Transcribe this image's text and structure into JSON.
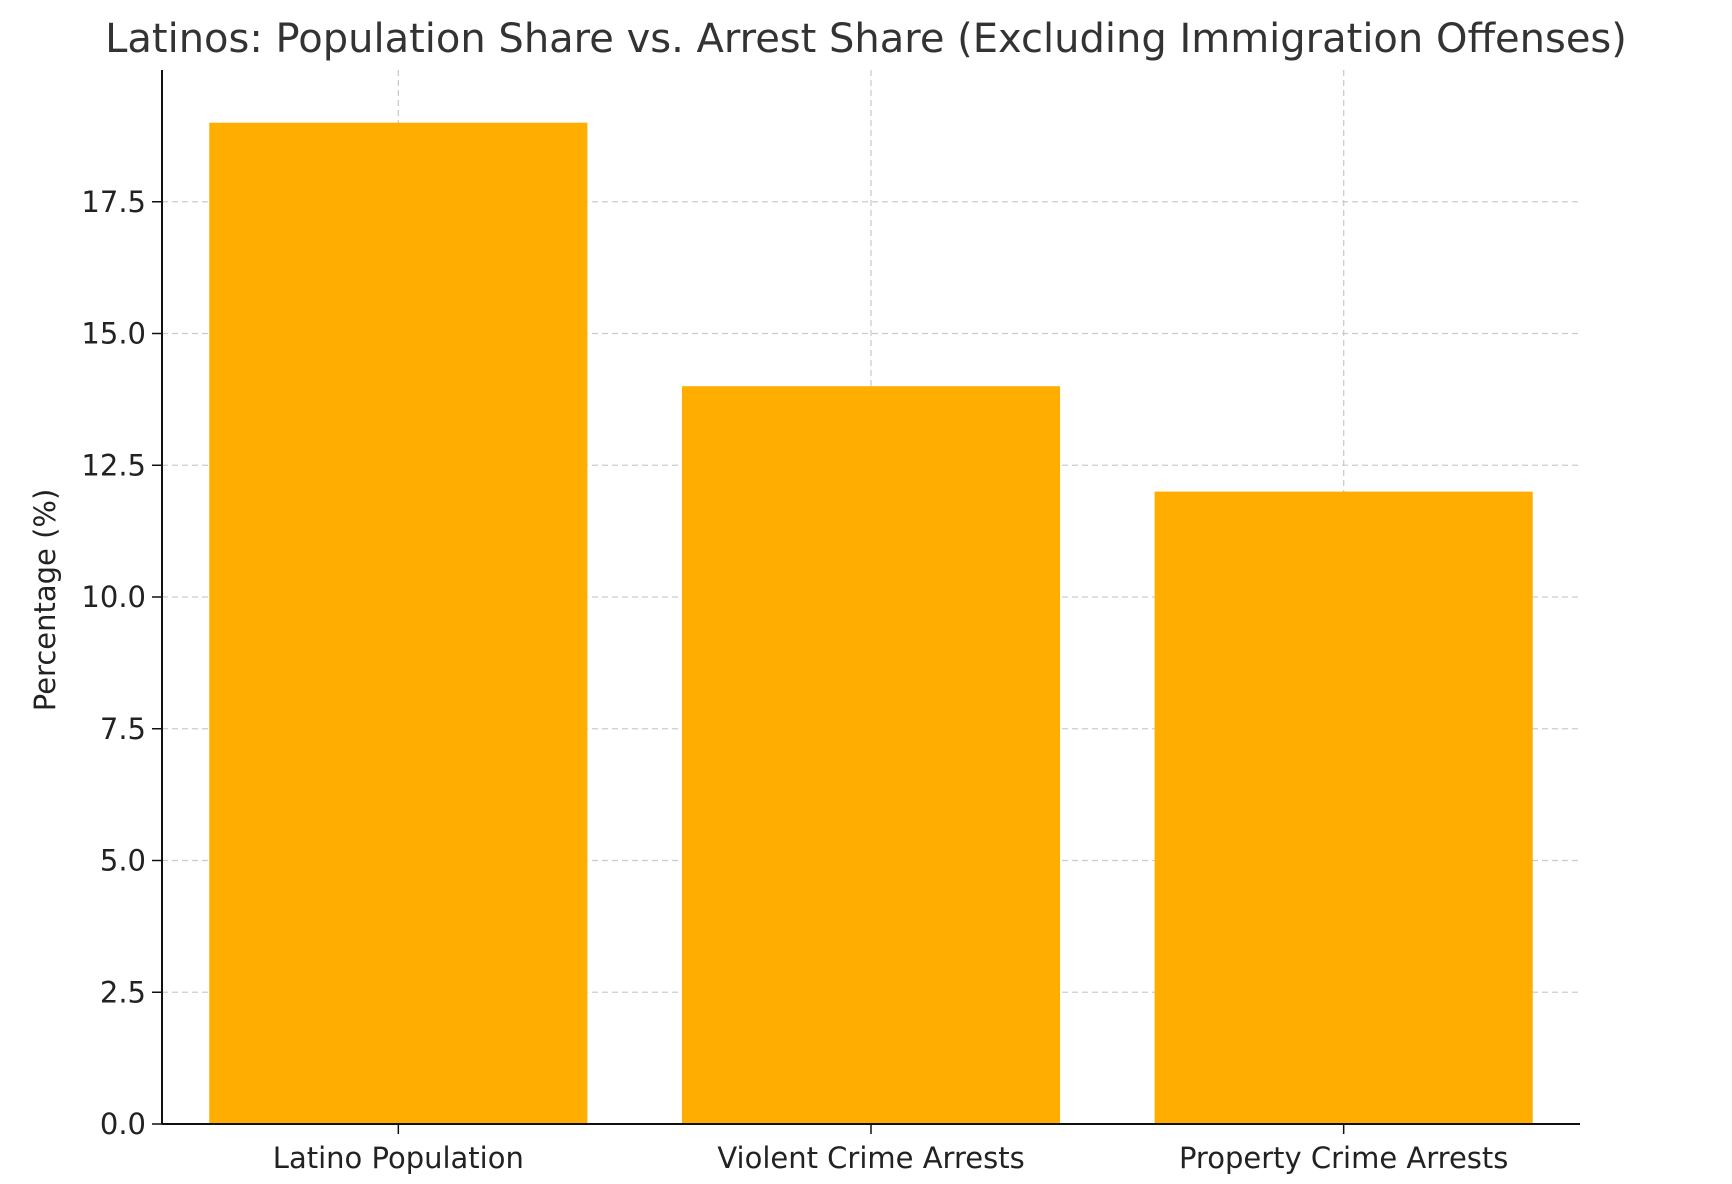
{
  "colors": {
    "bar": "#FFAE00",
    "grid": "#CCCCCC",
    "axis": "#111111",
    "text": "#222222",
    "background": "#FFFFFF"
  },
  "chart_data": {
    "type": "bar",
    "title": "Latinos: Population Share vs. Arrest Share (Excluding Immigration Offenses)",
    "xlabel": "",
    "ylabel": "Percentage (%)",
    "categories": [
      "Latino Population",
      "Violent Crime Arrests",
      "Property Crime Arrests"
    ],
    "values": [
      19,
      14,
      12
    ],
    "ylim": [
      0,
      20
    ],
    "yticks": [
      "0.0",
      "2.5",
      "5.0",
      "7.5",
      "10.0",
      "12.5",
      "15.0",
      "17.5"
    ],
    "grid": true,
    "legend": "none"
  }
}
